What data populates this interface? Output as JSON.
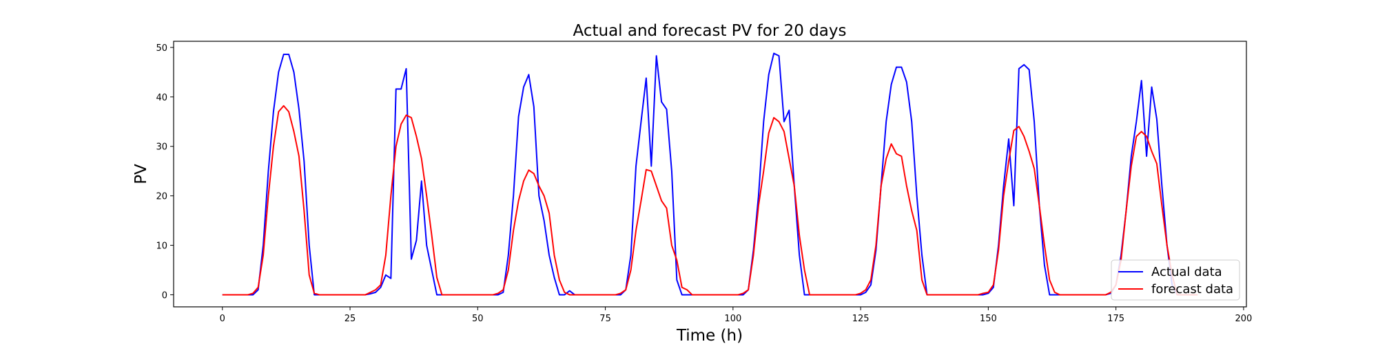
{
  "chart_data": {
    "type": "line",
    "title": "Actual and forecast PV for 20 days",
    "xlabel": "Time (h)",
    "ylabel": "PV",
    "x": [
      0,
      1,
      2,
      3,
      4,
      5,
      6,
      7,
      8,
      9,
      10,
      11,
      12,
      13,
      14,
      15,
      16,
      17,
      18,
      19,
      20,
      21,
      22,
      23,
      24,
      25,
      26,
      27,
      28,
      29,
      30,
      31,
      32,
      33,
      34,
      35,
      36,
      37,
      38,
      39,
      40,
      41,
      42,
      43,
      44,
      45,
      46,
      47,
      48,
      49,
      50,
      51,
      52,
      53,
      54,
      55,
      56,
      57,
      58,
      59,
      60,
      61,
      62,
      63,
      64,
      65,
      66,
      67,
      68,
      69,
      70,
      71,
      72,
      73,
      74,
      75,
      76,
      77,
      78,
      79,
      80,
      81,
      82,
      83,
      84,
      85,
      86,
      87,
      88,
      89,
      90,
      91,
      92,
      93,
      94,
      95,
      96,
      97,
      98,
      99,
      100,
      101,
      102,
      103,
      104,
      105,
      106,
      107,
      108,
      109,
      110,
      111,
      112,
      113,
      114,
      115,
      116,
      117,
      118,
      119,
      120,
      121,
      122,
      123,
      124,
      125,
      126,
      127,
      128,
      129,
      130,
      131,
      132,
      133,
      134,
      135,
      136,
      137,
      138,
      139,
      140,
      141,
      142,
      143,
      144,
      145,
      146,
      147,
      148,
      149,
      150,
      151,
      152,
      153,
      154,
      155,
      156,
      157,
      158,
      159,
      160,
      161,
      162,
      163,
      164,
      165,
      166,
      167,
      168,
      169,
      170,
      171,
      172,
      173,
      174,
      175,
      176,
      177,
      178,
      179,
      180,
      181,
      182,
      183,
      184,
      185,
      186,
      187,
      188,
      189,
      190,
      191
    ],
    "series": [
      {
        "name": "Actual data",
        "color": "#0000ff",
        "values": [
          0,
          0,
          0,
          0,
          0,
          0,
          0,
          1,
          10,
          25,
          37,
          45,
          48.6,
          48.6,
          45,
          37.5,
          27,
          10,
          0,
          0,
          0,
          0,
          0,
          0,
          0,
          0,
          0,
          0,
          0,
          0.2,
          0.5,
          1.5,
          4,
          3.3,
          41.6,
          41.6,
          45.7,
          7.2,
          11,
          23,
          10,
          5,
          0,
          0,
          0,
          0,
          0,
          0,
          0,
          0,
          0,
          0,
          0,
          0,
          0,
          0.5,
          8,
          20,
          36,
          42,
          44.5,
          38,
          20,
          15,
          8,
          3.5,
          0,
          0,
          0.8,
          0,
          0,
          0,
          0,
          0,
          0,
          0,
          0,
          0,
          0,
          1,
          8,
          26,
          35,
          43.8,
          26,
          48.3,
          39,
          37.5,
          25,
          3,
          0,
          0,
          0,
          0,
          0,
          0,
          0,
          0,
          0,
          0,
          0,
          0,
          0,
          1,
          9,
          20,
          35,
          44.5,
          48.8,
          48.3,
          35,
          37.3,
          22,
          8,
          0,
          0,
          0,
          0,
          0,
          0,
          0,
          0,
          0,
          0,
          0,
          0,
          0.5,
          2,
          9,
          22,
          35,
          42.5,
          46,
          46,
          43,
          35,
          20,
          8,
          0,
          0,
          0,
          0,
          0,
          0,
          0,
          0,
          0,
          0,
          0,
          0,
          0.3,
          1.5,
          10,
          22,
          31.5,
          18,
          45.7,
          46.5,
          45.5,
          35,
          18,
          6,
          0,
          0,
          0,
          0,
          0,
          0,
          0,
          0,
          0,
          0,
          0,
          0,
          0.3,
          2,
          8,
          17,
          28,
          35,
          43.3,
          28,
          42,
          35.5,
          22,
          10,
          2,
          0,
          0,
          0,
          0,
          0
        ]
      },
      {
        "name": "forecast data",
        "color": "#ff0000",
        "values": [
          0,
          0,
          0,
          0,
          0,
          0,
          0.3,
          1.5,
          8,
          20,
          30,
          37,
          38.2,
          37,
          33,
          28,
          17,
          4,
          0.3,
          0,
          0,
          0,
          0,
          0,
          0,
          0,
          0,
          0,
          0,
          0.5,
          1,
          2,
          8,
          20,
          30,
          34.5,
          36.3,
          35.8,
          32,
          27.5,
          20,
          12,
          3.5,
          0,
          0,
          0,
          0,
          0,
          0,
          0,
          0,
          0,
          0,
          0,
          0.3,
          1,
          5,
          13,
          19,
          23,
          25.2,
          24.5,
          22,
          20,
          16.5,
          8,
          3,
          0.5,
          0,
          0,
          0,
          0,
          0,
          0,
          0,
          0,
          0,
          0,
          0.3,
          1,
          5,
          13,
          19,
          25.3,
          25,
          22,
          19,
          17.5,
          10,
          7,
          1.5,
          1,
          0,
          0,
          0,
          0,
          0,
          0,
          0,
          0,
          0,
          0,
          0.3,
          1,
          8,
          18,
          25,
          32.7,
          35.8,
          35,
          33,
          27.5,
          22,
          12,
          5,
          0,
          0,
          0,
          0,
          0,
          0,
          0,
          0,
          0,
          0,
          0.3,
          1,
          3,
          10,
          22,
          27.5,
          30.5,
          28.5,
          28,
          22,
          17,
          13,
          3,
          0,
          0,
          0,
          0,
          0,
          0,
          0,
          0,
          0,
          0,
          0,
          0.3,
          0.5,
          2,
          9,
          20,
          27,
          33.2,
          34,
          32,
          29,
          25.5,
          18,
          10,
          3,
          0.5,
          0,
          0,
          0,
          0,
          0,
          0,
          0,
          0,
          0,
          0,
          0.5,
          2,
          7,
          17,
          26,
          32,
          33,
          32,
          29,
          26.5,
          18,
          10,
          4,
          0,
          0,
          0,
          0,
          0
        ]
      }
    ],
    "xlim": [
      -9.55,
      200.55
    ],
    "xticks": [
      0,
      25,
      50,
      75,
      100,
      125,
      150,
      175,
      200
    ],
    "ylim": [
      -2.44,
      51.24
    ],
    "yticks": [
      0,
      10,
      20,
      30,
      40,
      50
    ],
    "grid": false,
    "legend": "lower right"
  }
}
